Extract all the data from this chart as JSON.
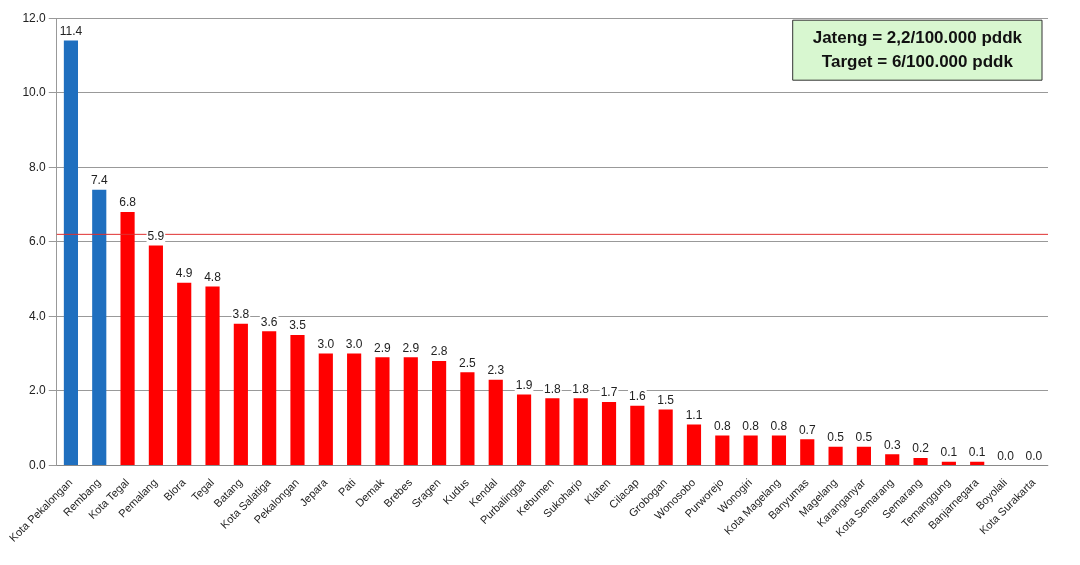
{
  "chart_data": {
    "type": "bar",
    "categories": [
      "Kota Pekalongan",
      "Rembang",
      "Kota Tegal",
      "Pemalang",
      "Blora",
      "Tegal",
      "Batang",
      "Kota Salatiga",
      "Pekalongan",
      "Jepara",
      "Pati",
      "Demak",
      "Brebes",
      "Sragen",
      "Kudus",
      "Kendal",
      "Purbalingga",
      "Kebumen",
      "Sukoharjo",
      "Klaten",
      "Cilacap",
      "Grobogan",
      "Wonosobo",
      "Purworejo",
      "Wonogiri",
      "Kota Magelang",
      "Banyumas",
      "Magelang",
      "Karanganyar",
      "Kota Semarang",
      "Semarang",
      "Temanggung",
      "Banjarnegara",
      "Boyolali",
      "Kota Surakarta"
    ],
    "values": [
      11.4,
      7.4,
      6.8,
      5.9,
      4.9,
      4.8,
      3.8,
      3.6,
      3.5,
      3.0,
      3.0,
      2.9,
      2.9,
      2.8,
      2.5,
      2.3,
      1.9,
      1.8,
      1.8,
      1.7,
      1.6,
      1.5,
      1.1,
      0.8,
      0.8,
      0.8,
      0.7,
      0.5,
      0.5,
      0.3,
      0.2,
      0.1,
      0.1,
      0.0,
      0.0
    ],
    "value_labels": [
      "11.4",
      "7.4",
      "6.8",
      "5.9",
      "4.9",
      "4.8",
      "3.8",
      "3.6",
      "3.5",
      "3.0",
      "3.0",
      "2.9",
      "2.9",
      "2.8",
      "2.5",
      "2.3",
      "1.9",
      "1.8",
      "1.8",
      "1.7",
      "1.6",
      "1.5",
      "1.1",
      "0.8",
      "0.8",
      "0.8",
      "0.7",
      "0.5",
      "0.5",
      "0.3",
      "0.2",
      "0.1",
      "0.1",
      "0.0",
      "0.0"
    ],
    "colors": [
      "#1f6fbf",
      "#1f6fbf",
      "#ff0000",
      "#ff0000",
      "#ff0000",
      "#ff0000",
      "#ff0000",
      "#ff0000",
      "#ff0000",
      "#ff0000",
      "#ff0000",
      "#ff0000",
      "#ff0000",
      "#ff0000",
      "#ff0000",
      "#ff0000",
      "#ff0000",
      "#ff0000",
      "#ff0000",
      "#ff0000",
      "#ff0000",
      "#ff0000",
      "#ff0000",
      "#ff0000",
      "#ff0000",
      "#ff0000",
      "#ff0000",
      "#ff0000",
      "#ff0000",
      "#ff0000",
      "#ff0000",
      "#ff0000",
      "#ff0000",
      "#ff0000",
      "#ff0000"
    ],
    "ylim": [
      0,
      12
    ],
    "yticks": [
      {
        "value": 0,
        "label": "0.0"
      },
      {
        "value": 2,
        "label": "2.0"
      },
      {
        "value": 4,
        "label": "4.0"
      },
      {
        "value": 6,
        "label": "6.0"
      },
      {
        "value": 8,
        "label": "8.0"
      },
      {
        "value": 10,
        "label": "10.0"
      },
      {
        "value": 12,
        "label": "12.0"
      }
    ],
    "ref_lines": [
      {
        "axis": "y",
        "value": 6.2,
        "color": "#e03030"
      }
    ],
    "annotations": [
      "Jateng = 2,2/100.000 pddk",
      "Target = 6/100.000 pddk"
    ],
    "grid": "y",
    "legend": false
  }
}
